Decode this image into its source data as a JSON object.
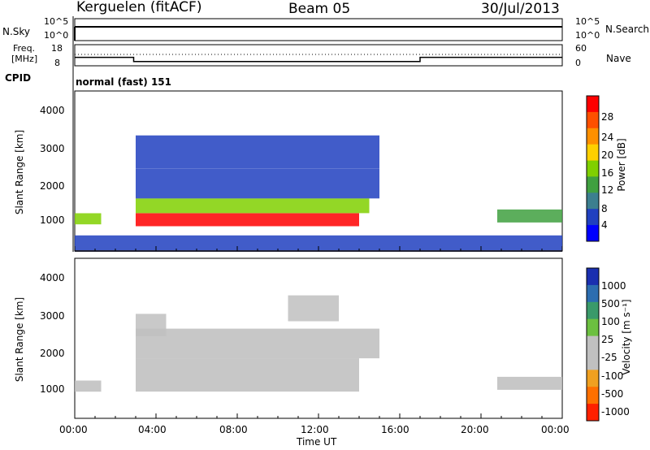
{
  "header": {
    "station": "Kerguelen (fitACF)",
    "beam": "Beam 05",
    "date": "30/Jul/2013"
  },
  "panels": {
    "nsky": {
      "left_label": "N.Sky",
      "left_ticks": [
        "10^5",
        "10^0"
      ],
      "right_label": "N.Search",
      "right_ticks": [
        "10^5",
        "10^0"
      ]
    },
    "freq": {
      "left_label_1": "Freq.",
      "left_label_2": "[MHz]",
      "left_ticks": [
        "18",
        "8"
      ],
      "right_label": "Nave",
      "right_ticks": [
        "60",
        "0"
      ]
    },
    "cpid": {
      "label": "CPID",
      "mode": "normal (fast) 151"
    },
    "power": {
      "ylabel": "Slant Range [km]",
      "yticks": [
        "4000",
        "3000",
        "2000",
        "1000"
      ],
      "colorbar_label": "Power [dB]",
      "colorbar_ticks": [
        "28",
        "24",
        "20",
        "16",
        "12",
        "8",
        "4"
      ],
      "colors": [
        "#0000ff",
        "#2040c0",
        "#3c7f8f",
        "#40a040",
        "#80d000",
        "#ffd000",
        "#ff9000",
        "#ff5000",
        "#ff0000"
      ]
    },
    "velocity": {
      "ylabel": "Slant Range [km]",
      "yticks": [
        "4000",
        "3000",
        "2000",
        "1000"
      ],
      "colorbar_label": "Velocity [m s⁻¹]",
      "colorbar_ticks": [
        "1000",
        "500",
        "100",
        "25",
        "-25",
        "-100",
        "-500",
        "-1000"
      ],
      "colors": [
        "#1a2fb0",
        "#2c6db0",
        "#3a9a6a",
        "#6cc040",
        "#c0c0c0",
        "#c0c0c0",
        "#f0a020",
        "#ff7000",
        "#ff2000"
      ],
      "ground_scatter_color": "#bdbdbd"
    }
  },
  "xaxis": {
    "label": "Time UT",
    "ticks": [
      "00:00",
      "04:00",
      "08:00",
      "12:00",
      "16:00",
      "20:00",
      "00:00"
    ]
  },
  "chart_data": [
    {
      "type": "line",
      "series": [
        {
          "name": "N.Sky",
          "x": [
            0.0,
            24.0
          ],
          "y": [
            1000,
            1000
          ]
        }
      ],
      "xlim": [
        0,
        24
      ],
      "yscale": "log"
    },
    {
      "type": "line",
      "series": [
        {
          "name": "Freq",
          "x": [
            0,
            2.9,
            2.9,
            17.0,
            17.0,
            24.0
          ],
          "y": [
            12,
            12,
            10,
            10,
            12,
            12
          ]
        }
      ],
      "xlim": [
        0,
        24
      ],
      "ylim": [
        8,
        18
      ]
    },
    {
      "type": "heatmap",
      "quantity": "Power",
      "xlim": [
        0,
        24
      ],
      "ylim": [
        180,
        4500
      ],
      "zlim": [
        0,
        30
      ],
      "regions": [
        {
          "x": [
            3.0,
            14.0
          ],
          "range_km": [
            850,
            1200
          ],
          "value": 28
        },
        {
          "x": [
            3.0,
            14.5
          ],
          "range_km": [
            1200,
            1600
          ],
          "value": 16
        },
        {
          "x": [
            3.0,
            15.0
          ],
          "range_km": [
            1600,
            2400
          ],
          "value": 6
        },
        {
          "x": [
            3.0,
            15.0
          ],
          "range_km": [
            2400,
            3300
          ],
          "value": 6
        },
        {
          "x": [
            0.0,
            1.3
          ],
          "range_km": [
            900,
            1200
          ],
          "value": 14
        },
        {
          "x": [
            20.8,
            24.0
          ],
          "range_km": [
            950,
            1300
          ],
          "value": 10
        },
        {
          "x": [
            0.0,
            24.0
          ],
          "range_km": [
            200,
            600
          ],
          "value": 6
        }
      ]
    },
    {
      "type": "heatmap",
      "quantity": "Velocity",
      "xlim": [
        0,
        24
      ],
      "ylim": [
        180,
        4500
      ],
      "zlim": [
        -1000,
        1000
      ],
      "regions": [
        {
          "x": [
            3.0,
            14.0
          ],
          "range_km": [
            900,
            1800
          ],
          "value": 0
        },
        {
          "x": [
            3.0,
            15.0
          ],
          "range_km": [
            1800,
            2600
          ],
          "value": 0
        },
        {
          "x": [
            0.0,
            1.3
          ],
          "range_km": [
            900,
            1200
          ],
          "value": 0
        },
        {
          "x": [
            20.8,
            24.0
          ],
          "range_km": [
            950,
            1300
          ],
          "value": 0
        },
        {
          "x": [
            3.0,
            4.5
          ],
          "range_km": [
            2400,
            3000
          ],
          "value": -100
        },
        {
          "x": [
            10.5,
            13.0
          ],
          "range_km": [
            2800,
            3500
          ],
          "value": -300
        }
      ]
    }
  ]
}
